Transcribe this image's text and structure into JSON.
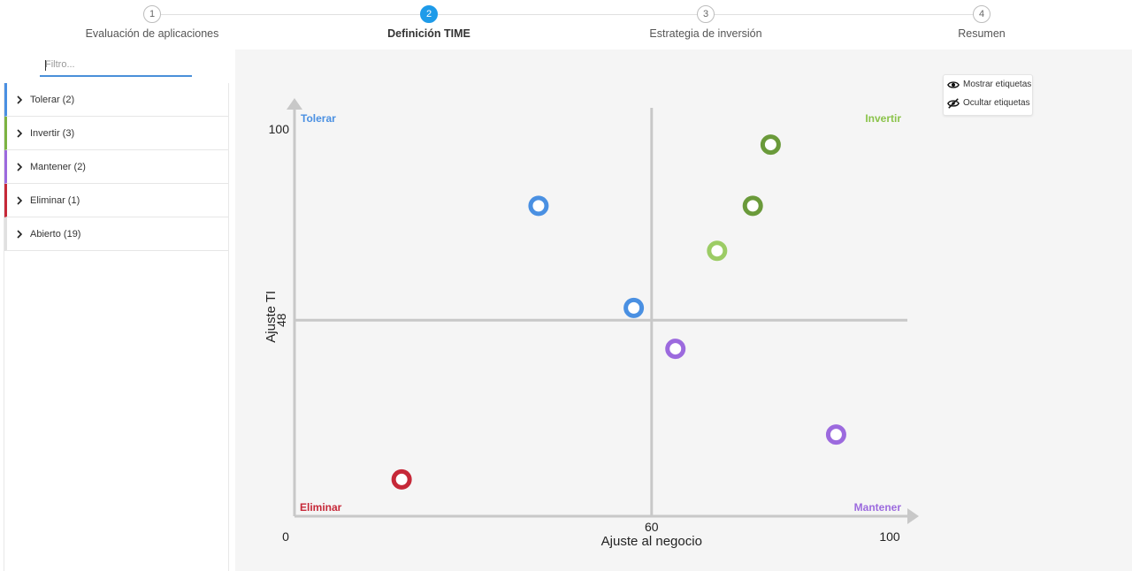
{
  "stepper": {
    "steps": [
      {
        "number": "1",
        "label": "Evaluación de aplicaciones"
      },
      {
        "number": "2",
        "label": "Definición TIME"
      },
      {
        "number": "3",
        "label": "Estrategia de inversión"
      },
      {
        "number": "4",
        "label": "Resumen"
      }
    ],
    "active_step": 2
  },
  "sidebar": {
    "filter_placeholder": "Filtro...",
    "groups": [
      {
        "label": "Tolerar (2)",
        "color": "#4a90e2"
      },
      {
        "label": "Invertir (3)",
        "color": "#7cb342"
      },
      {
        "label": "Mantener (2)",
        "color": "#9c6ade"
      },
      {
        "label": "Eliminar (1)",
        "color": "#c62838"
      },
      {
        "label": "Abierto (19)",
        "color": "#e0e0e0"
      }
    ]
  },
  "label_toggle": {
    "show_label": "Mostrar etiquetas",
    "hide_label": "Ocultar etiquetas"
  },
  "chart_data": {
    "type": "scatter",
    "xlabel": "Ajuste al negocio",
    "ylabel": "Ajuste TI",
    "xlim": [
      0,
      100
    ],
    "ylim": [
      0,
      100
    ],
    "x_tick_labels": [
      "0",
      "60",
      "100"
    ],
    "y_tick_labels": [
      "100",
      "48"
    ],
    "x_divider": 60,
    "y_divider": 48,
    "quadrants": {
      "top_left": {
        "label": "Tolerar",
        "color": "#4a90e2"
      },
      "top_right": {
        "label": "Invertir",
        "color": "#8bc34a"
      },
      "bottom_left": {
        "label": "Eliminar",
        "color": "#c62838"
      },
      "bottom_right": {
        "label": "Mantener",
        "color": "#9c6ade"
      }
    },
    "points": [
      {
        "x": 41,
        "y": 76,
        "category": "Tolerar",
        "color": "#4a90e2"
      },
      {
        "x": 57,
        "y": 51,
        "category": "Tolerar",
        "color": "#4a90e2"
      },
      {
        "x": 80,
        "y": 91,
        "category": "Invertir",
        "color": "#6a9a3a"
      },
      {
        "x": 77,
        "y": 76,
        "category": "Invertir",
        "color": "#6a9a3a"
      },
      {
        "x": 71,
        "y": 65,
        "category": "Invertir",
        "color": "#9ccc65"
      },
      {
        "x": 64,
        "y": 41,
        "category": "Mantener",
        "color": "#9c6ade"
      },
      {
        "x": 91,
        "y": 20,
        "category": "Mantener",
        "color": "#9c6ade"
      },
      {
        "x": 18,
        "y": 9,
        "category": "Eliminar",
        "color": "#c62838"
      }
    ]
  }
}
